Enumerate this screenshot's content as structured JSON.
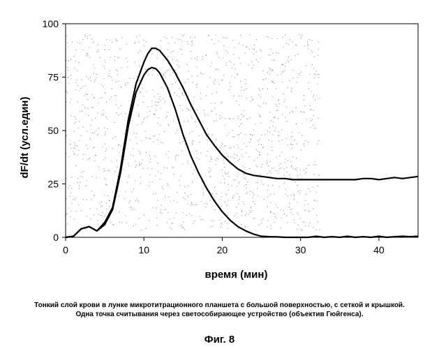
{
  "chart_data": {
    "type": "line",
    "xlabel": "время (мин)",
    "ylabel": "dF/dt (усл.един)",
    "xlim": [
      0,
      45
    ],
    "ylim": [
      0,
      100
    ],
    "xticks": [
      "0",
      "10",
      "20",
      "30",
      "40"
    ],
    "yticks": [
      "0",
      "25",
      "50",
      "75",
      "100"
    ],
    "grid": false,
    "series": [
      {
        "x": [
          0,
          1,
          2,
          3,
          4,
          5,
          6,
          7,
          8,
          9,
          10,
          10.5,
          11,
          11.5,
          12,
          13,
          14,
          15,
          16,
          17,
          18,
          19,
          20,
          21,
          22,
          23,
          24,
          25,
          26,
          27,
          28,
          29,
          30,
          31,
          32,
          33,
          34,
          35,
          36,
          37,
          38,
          39,
          40,
          41,
          42,
          43,
          44,
          45
        ],
        "values": [
          0,
          0.5,
          4,
          5,
          3,
          7,
          14,
          32,
          55,
          72,
          82,
          86,
          88.5,
          88.5,
          87.5,
          83,
          77,
          70,
          62,
          55,
          48,
          43,
          38.5,
          35,
          32,
          30,
          29,
          28.5,
          28,
          27.5,
          27.5,
          27,
          27,
          27,
          27,
          27,
          27,
          27,
          27,
          27,
          27.5,
          27.5,
          27,
          27.5,
          28,
          27.5,
          28,
          28.5
        ]
      },
      {
        "x": [
          0,
          1,
          2,
          3,
          4,
          5,
          6,
          7,
          8,
          9,
          10,
          10.5,
          11,
          11.5,
          12,
          13,
          14,
          15,
          16,
          17,
          18,
          19,
          20,
          21,
          22,
          23,
          24,
          25,
          26,
          27,
          28,
          29,
          30,
          31,
          32,
          33,
          34,
          35,
          36,
          37,
          38,
          39,
          40,
          41,
          42,
          43,
          44,
          45
        ],
        "values": [
          0,
          0.5,
          4,
          5,
          3,
          6,
          13,
          30,
          52,
          68,
          76,
          78.5,
          79.5,
          79,
          77,
          70,
          60,
          48,
          38,
          30,
          23,
          17,
          12,
          8,
          5,
          3,
          1.5,
          0.5,
          0.3,
          0.2,
          0,
          0,
          0,
          0,
          0.5,
          0,
          0.3,
          0,
          0.5,
          0,
          0.3,
          0,
          0.5,
          0,
          0.3,
          0.5,
          0.3,
          0.5
        ],
        "color": "#000000"
      }
    ]
  },
  "caption": {
    "line1": "Тонкий слой крови в лунке микротитрационного планшета с большой поверхностью, с сеткой и крышкой.",
    "line2": "Одна точка считывания через светособирающее устройство (объектив Гюйгенса)."
  },
  "figure_label": "Фиг. 8"
}
